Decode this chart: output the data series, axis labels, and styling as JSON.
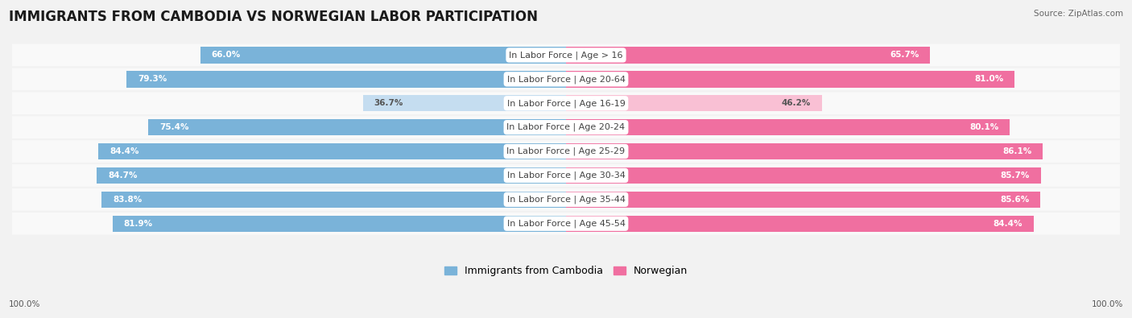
{
  "title": "IMMIGRANTS FROM CAMBODIA VS NORWEGIAN LABOR PARTICIPATION",
  "source": "Source: ZipAtlas.com",
  "categories": [
    "In Labor Force | Age > 16",
    "In Labor Force | Age 20-64",
    "In Labor Force | Age 16-19",
    "In Labor Force | Age 20-24",
    "In Labor Force | Age 25-29",
    "In Labor Force | Age 30-34",
    "In Labor Force | Age 35-44",
    "In Labor Force | Age 45-54"
  ],
  "cambodia_values": [
    66.0,
    79.3,
    36.7,
    75.4,
    84.4,
    84.7,
    83.8,
    81.9
  ],
  "norwegian_values": [
    65.7,
    81.0,
    46.2,
    80.1,
    86.1,
    85.7,
    85.6,
    84.4
  ],
  "cambodia_color": "#7ab3d9",
  "norwegian_color": "#f06fa0",
  "cambodia_color_light": "#c5ddf0",
  "norwegian_color_light": "#f9c0d4",
  "bg_color": "#f2f2f2",
  "row_bg_color": "#ffffff",
  "title_fontsize": 12,
  "label_fontsize": 8,
  "value_fontsize": 7.5,
  "legend_fontsize": 9,
  "max_value": 100.0,
  "axis_label_left": "100.0%",
  "axis_label_right": "100.0%"
}
